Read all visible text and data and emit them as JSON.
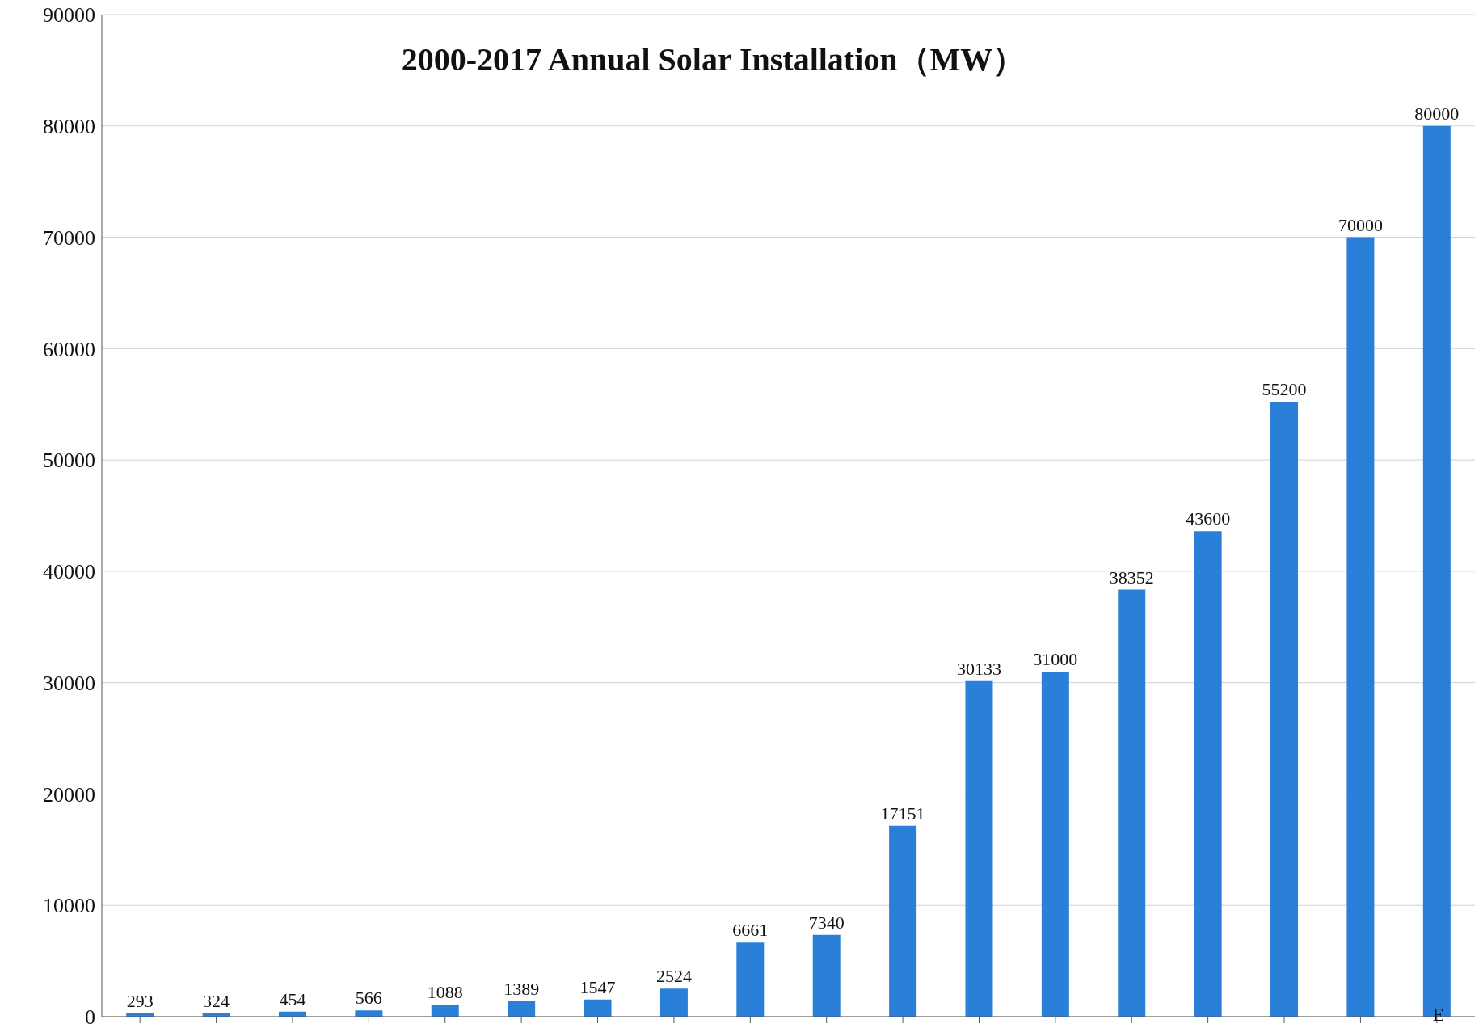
{
  "chart_data": {
    "type": "bar",
    "title": "2000-2017 Annual Solar Installation（MW）",
    "categories": [
      null,
      null,
      null,
      null,
      null,
      null,
      null,
      null,
      null,
      null,
      null,
      null,
      null,
      null,
      null,
      null,
      null,
      "E"
    ],
    "values": [
      293,
      324,
      454,
      566,
      1088,
      1389,
      1547,
      2524,
      6661,
      7340,
      17151,
      30133,
      31000,
      38352,
      43600,
      55200,
      70000,
      80000
    ],
    "color": "#2a7fd8",
    "ylim": [
      0,
      90000
    ],
    "yticks": [
      0,
      10000,
      20000,
      30000,
      40000,
      50000,
      60000,
      70000,
      80000,
      90000
    ],
    "grid": "y",
    "data_labels": true
  }
}
